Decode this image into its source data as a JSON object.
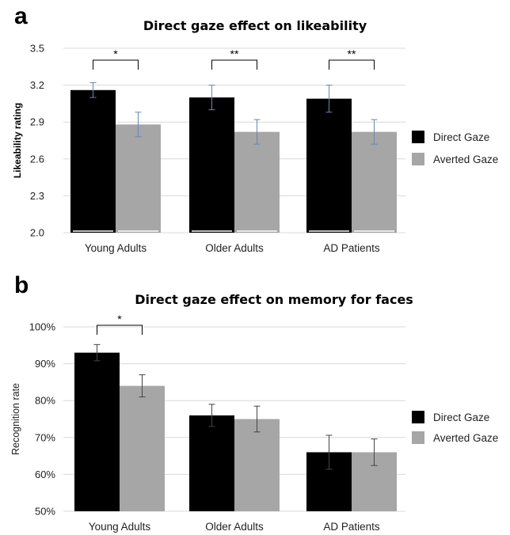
{
  "chart_data": [
    {
      "panel_label": "a",
      "type": "bar",
      "title": "Direct gaze effect on likeability",
      "xlabel": "",
      "ylabel": "Likeability rating",
      "categories": [
        "Young Adults",
        "Older Adults",
        "AD Patients"
      ],
      "ylim": [
        2.0,
        3.5
      ],
      "yticks": [
        2.0,
        2.3,
        2.6,
        2.9,
        3.2,
        3.5
      ],
      "ytick_labels": [
        "2.0",
        "2.3",
        "2.6",
        "2.9",
        "3.2",
        "3.5"
      ],
      "grid": true,
      "legend_position": "right",
      "series": [
        {
          "name": "Direct Gaze",
          "color": "#000000",
          "values": [
            3.16,
            3.1,
            3.09
          ],
          "errors": [
            0.06,
            0.1,
            0.11
          ]
        },
        {
          "name": "Averted Gaze",
          "color": "#a6a6a6",
          "values": [
            2.88,
            2.82,
            2.82
          ],
          "errors": [
            0.1,
            0.1,
            0.1
          ]
        }
      ],
      "error_bar_color": "#6a86b0",
      "significance": [
        "*",
        "**",
        "**"
      ]
    },
    {
      "panel_label": "b",
      "type": "bar",
      "title": "Direct gaze effect on memory for faces",
      "xlabel": "",
      "ylabel": "Recognition rate",
      "categories": [
        "Young Adults",
        "Older Adults",
        "AD Patients"
      ],
      "ylim": [
        50,
        100
      ],
      "yticks": [
        50,
        60,
        70,
        80,
        90,
        100
      ],
      "ytick_labels": [
        "50%",
        "60%",
        "70%",
        "80%",
        "90%",
        "100%"
      ],
      "grid": true,
      "legend_position": "right",
      "series": [
        {
          "name": "Direct Gaze",
          "color": "#000000",
          "values": [
            93,
            76,
            66
          ],
          "errors": [
            2.2,
            3.0,
            4.6
          ]
        },
        {
          "name": "Averted Gaze",
          "color": "#a6a6a6",
          "values": [
            84,
            75,
            66
          ],
          "errors": [
            3.0,
            3.5,
            3.6
          ]
        }
      ],
      "error_bar_color": "#444444",
      "significance": [
        "*",
        "",
        ""
      ]
    }
  ]
}
